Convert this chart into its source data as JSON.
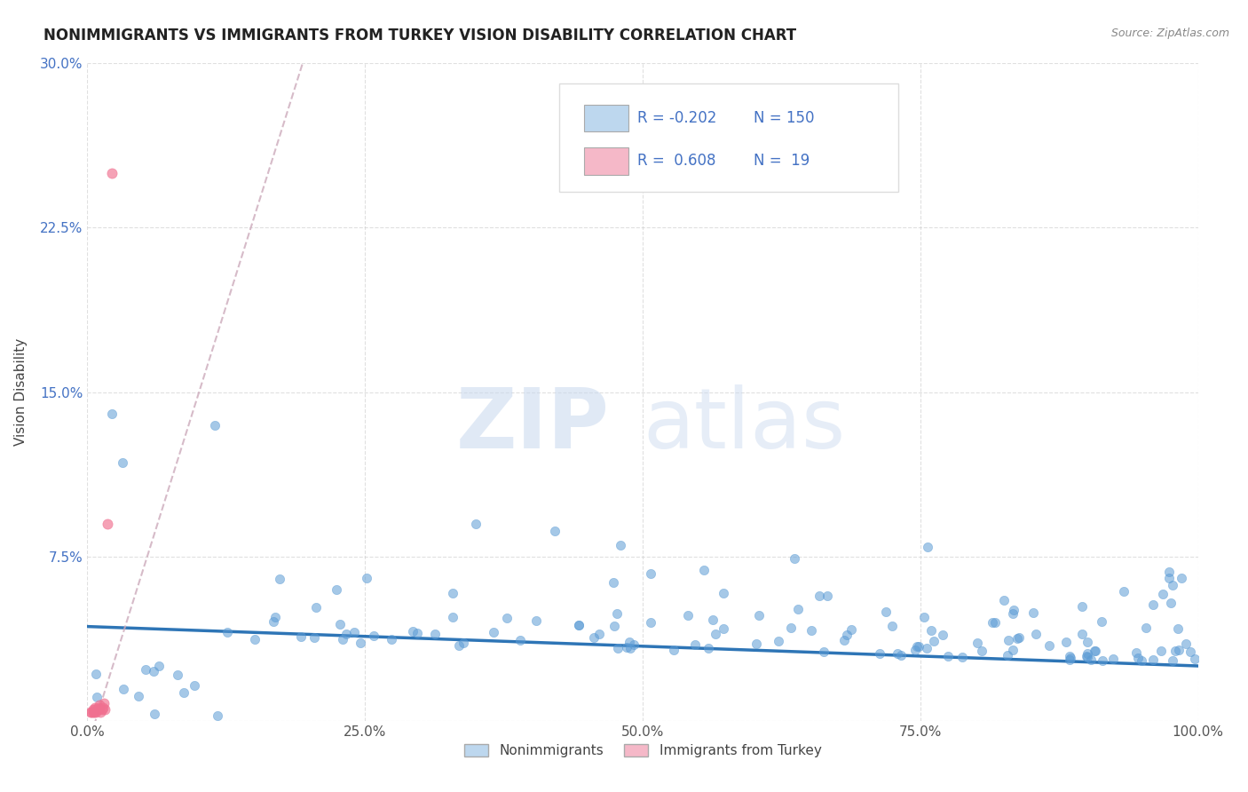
{
  "title": "NONIMMIGRANTS VS IMMIGRANTS FROM TURKEY VISION DISABILITY CORRELATION CHART",
  "source": "Source: ZipAtlas.com",
  "ylabel": "Vision Disability",
  "xlim": [
    0,
    1.0
  ],
  "ylim": [
    0,
    0.3
  ],
  "xticks": [
    0.0,
    0.25,
    0.5,
    0.75,
    1.0
  ],
  "xticklabels": [
    "0.0%",
    "25.0%",
    "50.0%",
    "75.0%",
    "100.0%"
  ],
  "yticks": [
    0.0,
    0.075,
    0.15,
    0.225,
    0.3
  ],
  "yticklabels": [
    "",
    "7.5%",
    "15.0%",
    "22.5%",
    "30.0%"
  ],
  "legend_r1": "-0.202",
  "legend_n1": "150",
  "legend_r2": "0.608",
  "legend_n2": "19",
  "color_nonimm": "#5b9bd5",
  "color_imm": "#f07090",
  "color_nonimm_light": "#bdd7ee",
  "color_imm_light": "#f5b8c8",
  "watermark_zip": "ZIP",
  "watermark_atlas": "atlas",
  "background_color": "#ffffff",
  "tick_color": "#555555",
  "ytick_color": "#4472c4",
  "title_color": "#222222",
  "source_color": "#888888",
  "grid_color": "#cccccc",
  "ylabel_color": "#444444",
  "nonimm_trend_color": "#2e75b6",
  "imm_trend_color": "#ccaabb",
  "legend_text_color": "#4472c4"
}
